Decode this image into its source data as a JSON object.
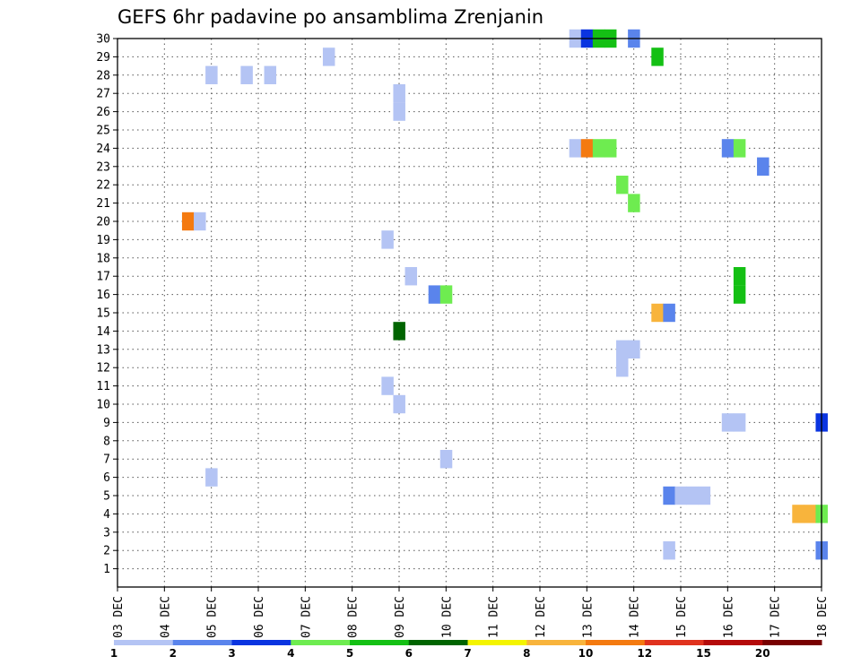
{
  "chart_data": {
    "type": "heatmap",
    "title": "GEFS 6hr padavine po ansamblima Zrenjanin",
    "xlabel": "",
    "ylabel": "",
    "x_tick_labels": [
      "03 DEC",
      "04 DEC",
      "05 DEC",
      "06 DEC",
      "07 DEC",
      "08 DEC",
      "09 DEC",
      "10 DEC",
      "11 DEC",
      "12 DEC",
      "13 DEC",
      "14 DEC",
      "15 DEC",
      "16 DEC",
      "17 DEC",
      "18 DEC"
    ],
    "y_tick_labels": [
      "1",
      "2",
      "3",
      "4",
      "5",
      "6",
      "7",
      "8",
      "9",
      "10",
      "11",
      "12",
      "13",
      "14",
      "15",
      "16",
      "17",
      "18",
      "19",
      "20",
      "21",
      "22",
      "23",
      "24",
      "25",
      "26",
      "27",
      "28",
      "29",
      "30"
    ],
    "x_range_days": [
      0,
      15
    ],
    "y_range_members": [
      0,
      30
    ],
    "grid": true,
    "legend": {
      "placement": "bottom",
      "levels": [
        "1",
        "2",
        "3",
        "4",
        "5",
        "6",
        "7",
        "8",
        "10",
        "12",
        "15",
        "20"
      ],
      "colors": [
        "#b4c4f4",
        "#5a84ec",
        "#0a34e0",
        "#6eec50",
        "#14c014",
        "#006400",
        "#f4f400",
        "#f8b43c",
        "#f47a10",
        "#e0321e",
        "#b40a0a",
        "#780000"
      ]
    },
    "cells": [
      {
        "member": 30,
        "day": 9.75,
        "level": 0
      },
      {
        "member": 30,
        "day": 10.0,
        "level": 2
      },
      {
        "member": 30,
        "day": 10.25,
        "level": 4
      },
      {
        "member": 30,
        "day": 10.5,
        "level": 4
      },
      {
        "member": 30,
        "day": 11.0,
        "level": 1
      },
      {
        "member": 29,
        "day": 4.5,
        "level": 0
      },
      {
        "member": 29,
        "day": 11.5,
        "level": 4
      },
      {
        "member": 28,
        "day": 2.0,
        "level": 0
      },
      {
        "member": 28,
        "day": 2.75,
        "level": 0
      },
      {
        "member": 28,
        "day": 3.25,
        "level": 0
      },
      {
        "member": 27,
        "day": 6.0,
        "level": 0
      },
      {
        "member": 26,
        "day": 6.0,
        "level": 0
      },
      {
        "member": 24,
        "day": 9.75,
        "level": 0
      },
      {
        "member": 24,
        "day": 10.0,
        "level": 8
      },
      {
        "member": 24,
        "day": 10.25,
        "level": 3
      },
      {
        "member": 24,
        "day": 10.5,
        "level": 3
      },
      {
        "member": 24,
        "day": 13.0,
        "level": 1
      },
      {
        "member": 24,
        "day": 13.25,
        "level": 3
      },
      {
        "member": 23,
        "day": 13.75,
        "level": 1
      },
      {
        "member": 22,
        "day": 10.75,
        "level": 3
      },
      {
        "member": 21,
        "day": 11.0,
        "level": 3
      },
      {
        "member": 20,
        "day": 1.5,
        "level": 8
      },
      {
        "member": 20,
        "day": 1.75,
        "level": 0
      },
      {
        "member": 19,
        "day": 5.75,
        "level": 0
      },
      {
        "member": 17,
        "day": 6.25,
        "level": 0
      },
      {
        "member": 17,
        "day": 13.25,
        "level": 4
      },
      {
        "member": 16,
        "day": 13.25,
        "level": 4
      },
      {
        "member": 16,
        "day": 6.75,
        "level": 1
      },
      {
        "member": 16,
        "day": 7.0,
        "level": 3
      },
      {
        "member": 15,
        "day": 11.5,
        "level": 7
      },
      {
        "member": 15,
        "day": 11.75,
        "level": 1
      },
      {
        "member": 14,
        "day": 6.0,
        "level": 5
      },
      {
        "member": 13,
        "day": 10.75,
        "level": 0
      },
      {
        "member": 13,
        "day": 11.0,
        "level": 0
      },
      {
        "member": 12,
        "day": 10.75,
        "level": 0
      },
      {
        "member": 11,
        "day": 5.75,
        "level": 0
      },
      {
        "member": 10,
        "day": 6.0,
        "level": 0
      },
      {
        "member": 9,
        "day": 13.0,
        "level": 0
      },
      {
        "member": 9,
        "day": 13.25,
        "level": 0
      },
      {
        "member": 9,
        "day": 15.0,
        "level": 2
      },
      {
        "member": 7,
        "day": 7.0,
        "level": 0
      },
      {
        "member": 6,
        "day": 2.0,
        "level": 0
      },
      {
        "member": 5,
        "day": 11.75,
        "level": 1
      },
      {
        "member": 5,
        "day": 12.0,
        "level": 0
      },
      {
        "member": 5,
        "day": 12.25,
        "level": 0
      },
      {
        "member": 5,
        "day": 12.5,
        "level": 0
      },
      {
        "member": 4,
        "day": 14.5,
        "level": 7
      },
      {
        "member": 4,
        "day": 14.75,
        "level": 7
      },
      {
        "member": 4,
        "day": 15.0,
        "level": 3
      },
      {
        "member": 2,
        "day": 11.75,
        "level": 0
      },
      {
        "member": 2,
        "day": 15.0,
        "level": 1
      }
    ]
  }
}
